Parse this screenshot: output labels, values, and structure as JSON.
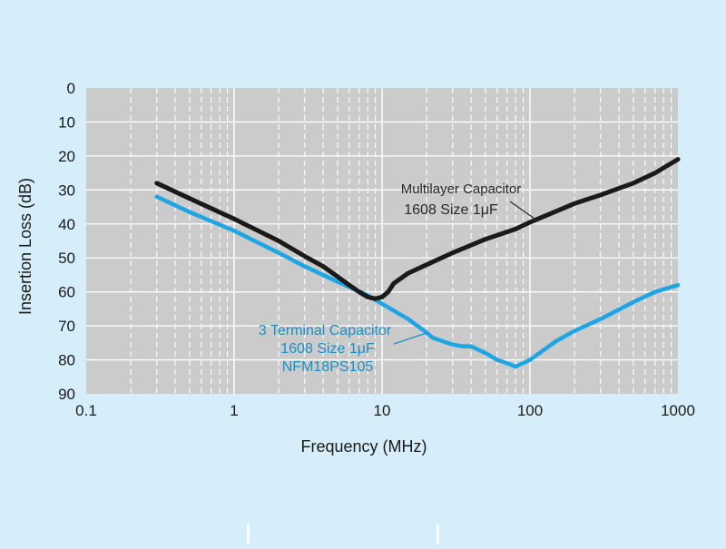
{
  "colors": {
    "background": "#d6eefa",
    "plot_area": "#cbcbcb",
    "grid": "#ffffff",
    "multilayer": "#1a1a1a",
    "three_terminal": "#1ea5e4",
    "three_terminal_label": "#1a8fc4"
  },
  "chart_data": {
    "type": "line",
    "xlabel": "Frequency (MHz)",
    "ylabel": "Insertion Loss (dB)",
    "xscale": "log",
    "xlim": [
      0.1,
      1000
    ],
    "ylim": [
      0,
      90
    ],
    "y_inverted": true,
    "grid": true,
    "x_ticks": [
      "0.1",
      "1",
      "10",
      "100",
      "1000"
    ],
    "x_tick_values": [
      0.1,
      1,
      10,
      100,
      1000
    ],
    "y_ticks": [
      "0",
      "10",
      "20",
      "30",
      "40",
      "50",
      "60",
      "70",
      "80",
      "90"
    ],
    "y_tick_values": [
      0,
      10,
      20,
      30,
      40,
      50,
      60,
      70,
      80,
      90
    ],
    "series": [
      {
        "key": "multilayer",
        "x": [
          0.3,
          0.5,
          1,
          2,
          3,
          4,
          5,
          6,
          7,
          8,
          9,
          10,
          11,
          12,
          15,
          20,
          30,
          50,
          80,
          100,
          200,
          300,
          500,
          700,
          1000
        ],
        "y": [
          28,
          32.5,
          38.5,
          45,
          49.5,
          52.5,
          55.5,
          58,
          60,
          61.5,
          62,
          61.5,
          60,
          57.5,
          54.5,
          52,
          48.5,
          44.5,
          41.5,
          39.5,
          34,
          31.5,
          28,
          25,
          21
        ]
      },
      {
        "key": "three_terminal",
        "x": [
          0.3,
          0.5,
          1,
          2,
          3,
          5,
          8,
          10,
          15,
          20,
          22,
          30,
          35,
          40,
          50,
          60,
          70,
          80,
          100,
          150,
          200,
          300,
          500,
          700,
          1000
        ],
        "y": [
          32,
          36.5,
          42,
          48.5,
          52.5,
          57,
          61,
          63.5,
          68,
          72,
          73.5,
          75.5,
          76,
          76,
          78,
          80,
          81,
          82,
          80,
          74.5,
          71.5,
          68,
          63,
          60,
          58
        ]
      }
    ],
    "annotations": [
      {
        "key": "multilayer",
        "lines": [
          "Multilayer Capacitor",
          "1608 Size 1μF"
        ]
      },
      {
        "key": "three_terminal",
        "lines": [
          "3 Terminal Capacitor",
          "1608 Size 1μF",
          "NFM18PS105"
        ]
      }
    ]
  }
}
